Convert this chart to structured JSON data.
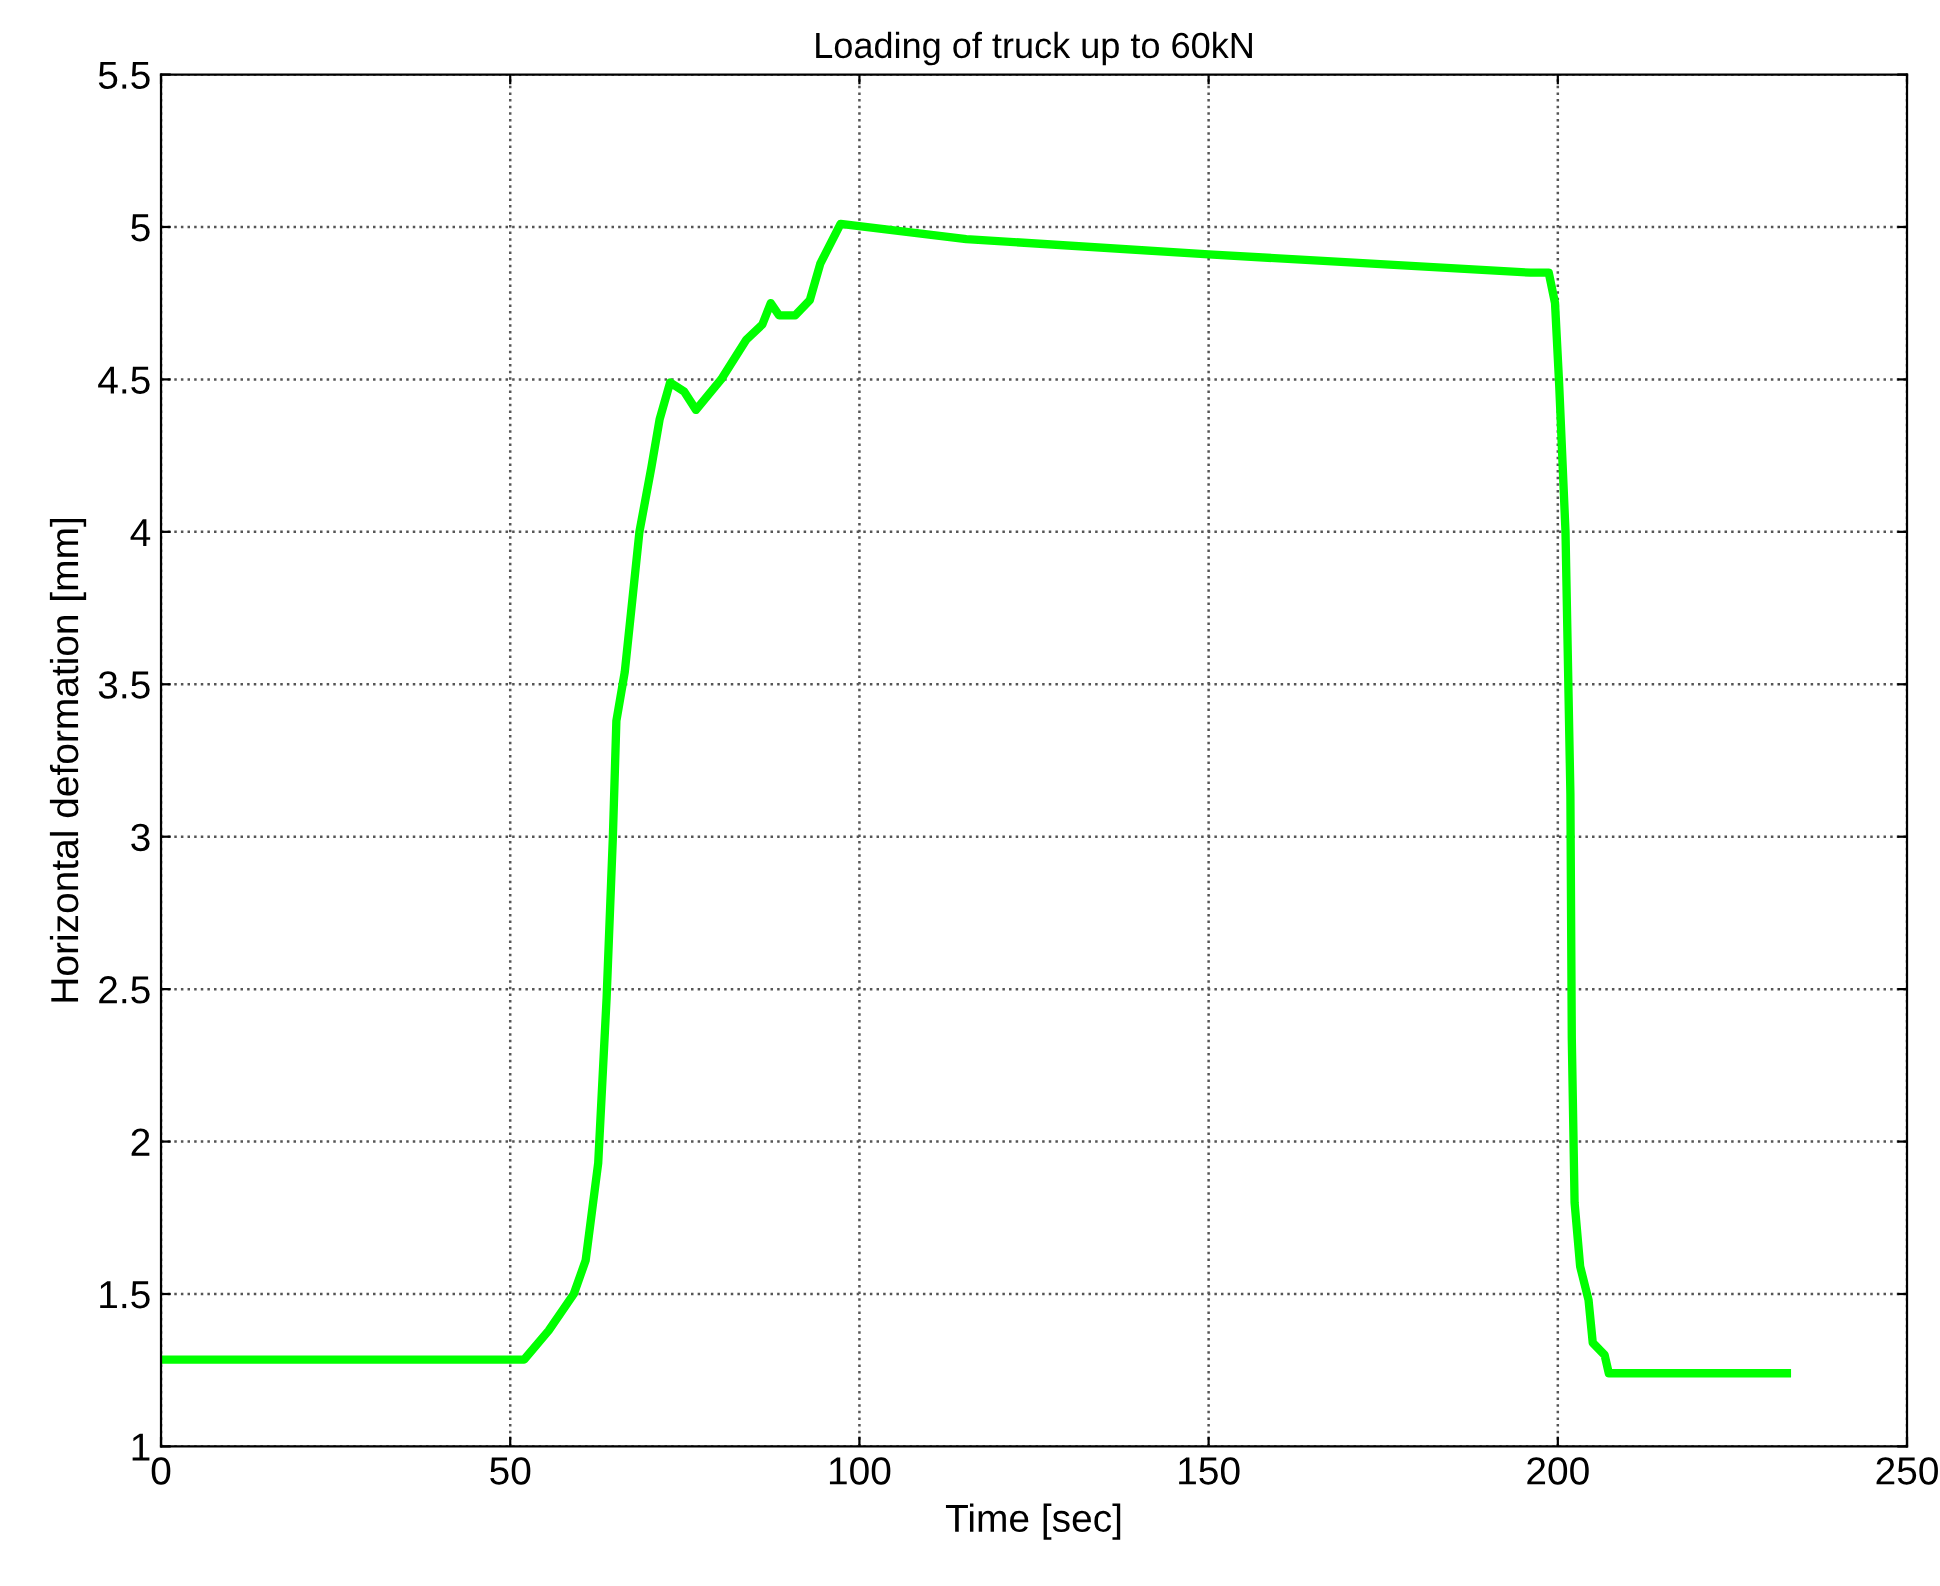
{
  "chart_data": {
    "type": "line",
    "title": "Loading of truck up to 60kN",
    "xlabel": "Time [sec]",
    "ylabel": "Horizontal deformation [mm]",
    "xlim": [
      0,
      250
    ],
    "xticks": [
      0,
      50,
      100,
      150,
      200,
      250
    ],
    "ylim": [
      1,
      5.5
    ],
    "yticks": [
      1,
      1.5,
      2,
      2.5,
      3,
      3.5,
      4,
      4.5,
      5,
      5.5
    ],
    "grid": true,
    "line_style": "solid",
    "series": [
      {
        "color": "#00ff00",
        "x": [
          0,
          52.0,
          55.5,
          59.1,
          60.8,
          62.6,
          63.8,
          64.7,
          65.2,
          66.4,
          67.5,
          68.5,
          70.2,
          71.4,
          72.9,
          74.9,
          76.6,
          80.2,
          83.8,
          86.1,
          87.3,
          88.5,
          90.8,
          92.9,
          94.4,
          97.3,
          115.3,
          150,
          196.1,
          198.7,
          199.6,
          200.2,
          201.1,
          201.8,
          202.0,
          202.4,
          203.2,
          204.4,
          205.0,
          206.7,
          207.3,
          232.8
        ],
        "values": [
          1.285,
          1.285,
          1.38,
          1.5,
          1.61,
          1.93,
          2.47,
          3.0,
          3.38,
          3.54,
          3.78,
          4.0,
          4.21,
          4.37,
          4.49,
          4.46,
          4.4,
          4.5,
          4.63,
          4.68,
          4.75,
          4.71,
          4.71,
          4.76,
          4.88,
          5.01,
          4.96,
          4.91,
          4.85,
          4.85,
          4.75,
          4.48,
          4.0,
          3.14,
          2.34,
          1.8,
          1.59,
          1.48,
          1.34,
          1.3,
          1.24,
          1.24
        ]
      }
    ]
  }
}
